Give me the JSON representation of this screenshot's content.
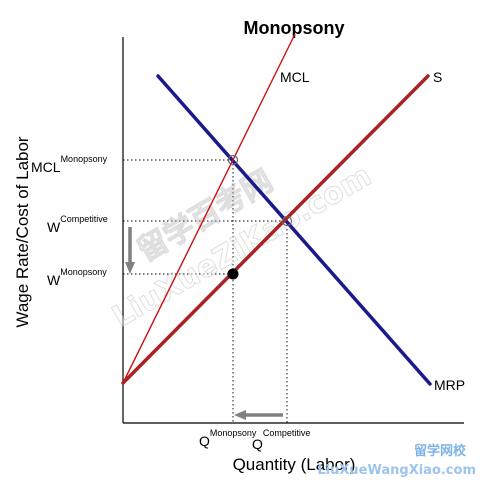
{
  "title": "Monopsony",
  "xlabel": "Quantity (Labor)",
  "ylabel": "Wage Rate/Cost of Labor",
  "colors": {
    "mcl": "#cc1111",
    "supply": "#aa2222",
    "mrp": "#1a1a8c",
    "arrow": "#808080",
    "point": "#000000"
  },
  "curves": {
    "mcl_label": "MCL",
    "supply_label": "S",
    "mrp_label": "MRP"
  },
  "y_labels": {
    "mcl_main": "MCL",
    "mcl_sup": "Monopsony",
    "wc_main": "W",
    "wc_sup": "Competitive",
    "wm_main": "W",
    "wm_sup": "Monopsony"
  },
  "x_labels": {
    "qm_main": "Q",
    "qm_sup": "Monopsony",
    "qc_main": "Q",
    "qc_sup": "Competitive"
  },
  "watermarks": {
    "diagonal_1": "留学百考网",
    "diagonal_2": "LiuXueZiKao.com",
    "corner_1": "留学网校",
    "corner_2": "LiuXueWangXiao.com"
  }
}
